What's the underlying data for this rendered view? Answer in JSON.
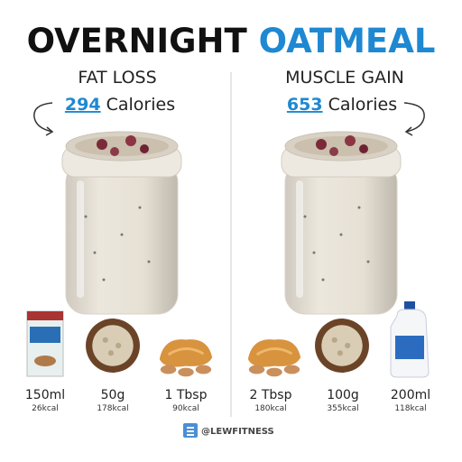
{
  "title": {
    "part1": "OVERNIGHT",
    "part2": "OATMEAL"
  },
  "left": {
    "heading": "FAT LOSS",
    "calories": "294",
    "calories_unit": "Calories",
    "ingredients": [
      {
        "amount": "150ml",
        "kcal": "26kcal"
      },
      {
        "amount": "50g",
        "kcal": "178kcal"
      },
      {
        "amount": "1 Tbsp",
        "kcal": "90kcal"
      }
    ]
  },
  "right": {
    "heading": "MUSCLE GAIN",
    "calories": "653",
    "calories_unit": "Calories",
    "ingredients": [
      {
        "amount": "2 Tbsp",
        "kcal": "180kcal"
      },
      {
        "amount": "100g",
        "kcal": "355kcal"
      },
      {
        "amount": "200ml",
        "kcal": "118kcal"
      }
    ]
  },
  "footer": {
    "handle": "@LEWFITNESS"
  }
}
